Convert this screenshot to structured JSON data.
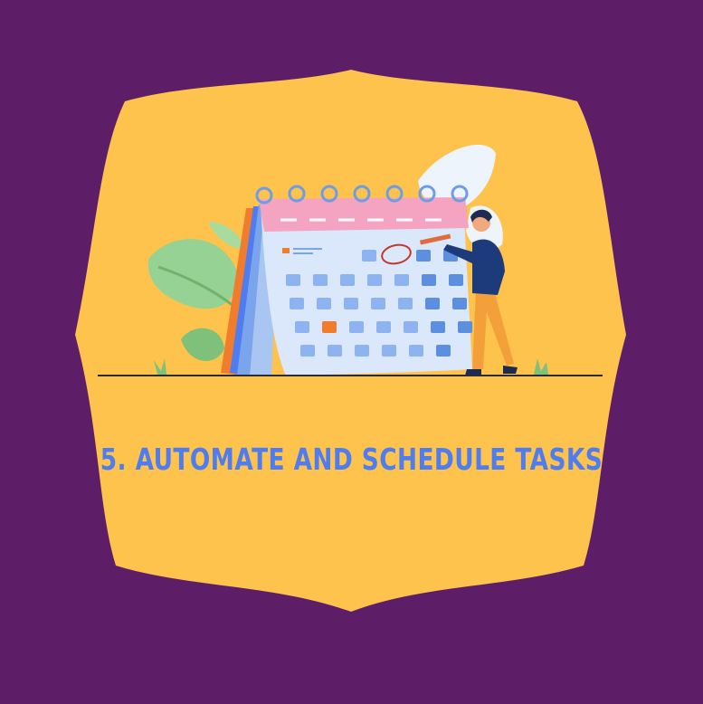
{
  "title": "5. AUTOMATE AND SCHEDULE TASKS",
  "colors": {
    "background": "#5e1e67",
    "frame": "#fdc34c",
    "title": "#4f7df0",
    "calendar_header": "#f4a3c0",
    "calendar_body": "#dbe8fb",
    "calendar_side": "#5c8fe0",
    "highlight_cell": "#f07d2e",
    "person_shirt": "#1d3a7a",
    "person_pants": "#f4a03a",
    "leaf_green": "#8fcf8e",
    "leaf_white": "#eef4fb"
  },
  "illustration": {
    "icon": "calendar-planning-illustration"
  }
}
